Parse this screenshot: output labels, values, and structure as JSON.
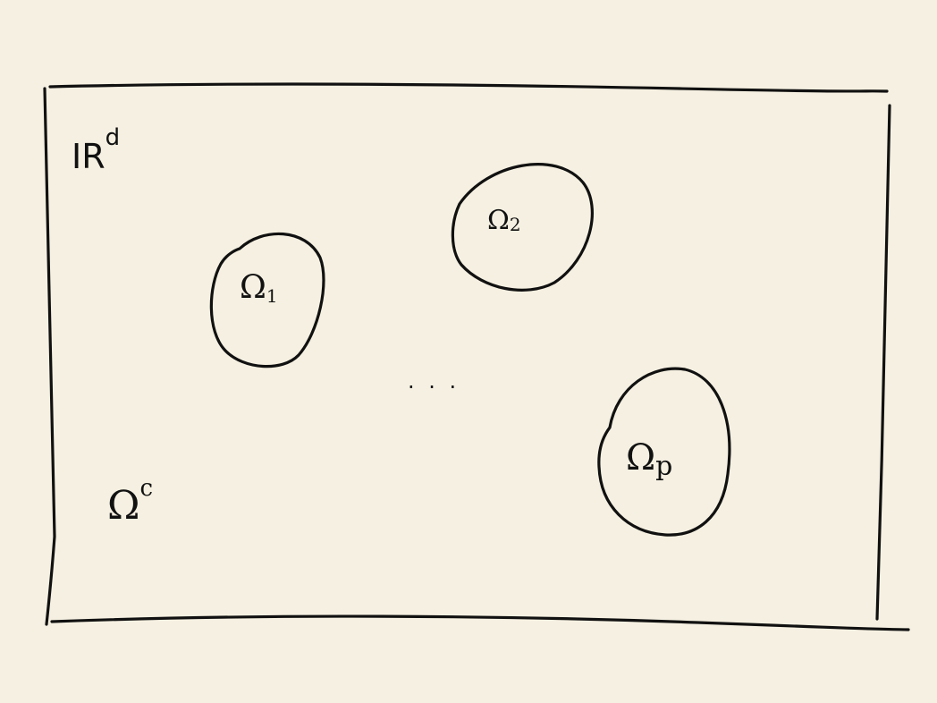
{
  "diagram": {
    "colors": {
      "paper": "#f5f0e1",
      "ink": "#111111"
    },
    "space_label": {
      "base": "IR",
      "superscript": "d"
    },
    "complement_label": {
      "base": "Ω",
      "superscript": "c"
    },
    "ellipsis": ". . .",
    "regions": [
      {
        "id": "omega-1",
        "base": "Ω",
        "subscript": "1"
      },
      {
        "id": "omega-2",
        "base": "Ω",
        "subscript": "2"
      },
      {
        "id": "omega-p",
        "base": "Ω",
        "subscript": "p"
      }
    ]
  }
}
